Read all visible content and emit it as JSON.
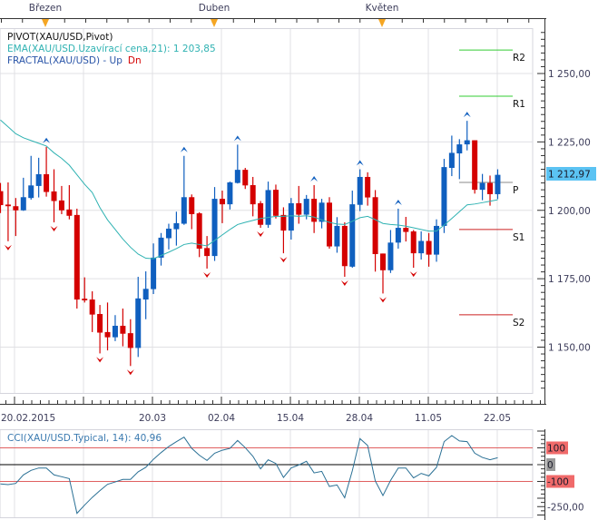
{
  "legend": {
    "pivot": "PIVOT(XAU/USD,Pivot)",
    "ema": "EMA(XAU/USD.Uzavírací cena,21): 1 203,85",
    "fractal": "FRACTAL(XAU/USD) -  Up",
    "fractal_dn": "Dn"
  },
  "top_axis": {
    "months": [
      "Březen",
      "Duben",
      "Květen"
    ]
  },
  "bottom_axis": {
    "dates": [
      "20.02.2015",
      "20.03",
      "02.04",
      "15.04",
      "28.04",
      "11.05",
      "22.05"
    ]
  },
  "price_axis": {
    "ticks": [
      {
        "value": 1250,
        "label": "1 250,00"
      },
      {
        "value": 1225,
        "label": "1 225,00"
      },
      {
        "value": 1200,
        "label": "1 200,00"
      },
      {
        "value": 1175,
        "label": "1 175,00"
      },
      {
        "value": 1150,
        "label": "1 150,00"
      }
    ],
    "current": {
      "value": 1212.97,
      "label": "1 212,97"
    }
  },
  "cci_pane": {
    "title": "CCI(XAU/USD.Typical, 14): 40,96",
    "levels": [
      {
        "value": 100,
        "label": "100"
      },
      {
        "value": 0,
        "label": "0"
      },
      {
        "value": -100,
        "label": "-100"
      }
    ],
    "axis_label": {
      "value": -250,
      "label": "-250,00"
    }
  },
  "colors": {
    "bull": "#0f5fbf",
    "bear": "#d40000",
    "ema": "#2fb2b2",
    "cci": "#2a7095",
    "resistance": "#33cc33",
    "support": "#cc2222",
    "pivot": "#8a8a8a",
    "current_price_bg": "#5bc3f3",
    "level_bg": "#f06a6a",
    "zero_bg": "#9a9a9a",
    "month_marker": "#f5a623"
  },
  "chart_data": {
    "type": "candlestick",
    "symbol": "XAU/USD",
    "ylim": [
      1135,
      1265
    ],
    "grid": true,
    "candles_ohlc": [
      [
        1207.0,
        1210.0,
        1199.0,
        1201.9
      ],
      [
        1202.1,
        1210.2,
        1188.7,
        1201.5
      ],
      [
        1201.5,
        1204.5,
        1190.6,
        1200.0
      ],
      [
        1200.0,
        1211.9,
        1199.8,
        1204.8
      ],
      [
        1204.5,
        1219.9,
        1203.9,
        1209.1
      ],
      [
        1208.9,
        1219.2,
        1204.7,
        1213.2
      ],
      [
        1213.2,
        1223.2,
        1205.0,
        1206.7
      ],
      [
        1206.9,
        1215.0,
        1195.6,
        1203.4
      ],
      [
        1203.6,
        1208.9,
        1198.6,
        1200.0
      ],
      [
        1200.3,
        1209.2,
        1196.7,
        1198.0
      ],
      [
        1198.3,
        1200.6,
        1164.1,
        1167.4
      ],
      [
        1167.7,
        1175.5,
        1166.3,
        1167.1
      ],
      [
        1167.4,
        1170.4,
        1155.5,
        1161.9
      ],
      [
        1162.1,
        1165.4,
        1147.7,
        1155.3
      ],
      [
        1155.5,
        1166.3,
        1148.8,
        1153.6
      ],
      [
        1153.6,
        1161.7,
        1152.2,
        1157.8
      ],
      [
        1157.8,
        1164.1,
        1150.3,
        1154.9
      ],
      [
        1155.1,
        1160.2,
        1143.1,
        1149.7
      ],
      [
        1149.7,
        1175.7,
        1146.4,
        1167.8
      ],
      [
        1167.4,
        1177.7,
        1160.2,
        1171.3
      ],
      [
        1171.2,
        1187.9,
        1169.4,
        1182.7
      ],
      [
        1182.7,
        1191.7,
        1179.8,
        1190.0
      ],
      [
        1189.8,
        1195.1,
        1185.7,
        1193.3
      ],
      [
        1193.1,
        1199.5,
        1187.1,
        1195.3
      ],
      [
        1195.1,
        1219.9,
        1194.7,
        1204.8
      ],
      [
        1204.8,
        1205.8,
        1193.1,
        1198.6
      ],
      [
        1198.9,
        1199.3,
        1182.9,
        1186.0
      ],
      [
        1186.2,
        1190.6,
        1178.7,
        1183.3
      ],
      [
        1183.3,
        1208.5,
        1181.5,
        1204.2
      ],
      [
        1204.2,
        1207.2,
        1195.3,
        1202.2
      ],
      [
        1202.2,
        1210.5,
        1200.3,
        1210.2
      ],
      [
        1210.0,
        1224.0,
        1209.8,
        1214.8
      ],
      [
        1214.8,
        1215.5,
        1207.8,
        1209.1
      ],
      [
        1209.2,
        1212.2,
        1197.8,
        1202.2
      ],
      [
        1202.6,
        1203.4,
        1193.6,
        1194.7
      ],
      [
        1194.7,
        1210.5,
        1193.6,
        1207.4
      ],
      [
        1207.5,
        1209.4,
        1197.0,
        1198.0
      ],
      [
        1198.3,
        1201.1,
        1184.3,
        1192.6
      ],
      [
        1192.6,
        1204.5,
        1189.3,
        1202.6
      ],
      [
        1202.6,
        1208.9,
        1195.1,
        1198.4
      ],
      [
        1198.4,
        1205.6,
        1196.7,
        1204.2
      ],
      [
        1204.2,
        1209.2,
        1191.7,
        1195.8
      ],
      [
        1195.8,
        1204.2,
        1193.4,
        1202.8
      ],
      [
        1202.8,
        1204.8,
        1186.0,
        1186.8
      ],
      [
        1186.8,
        1197.5,
        1184.5,
        1194.3
      ],
      [
        1194.3,
        1195.6,
        1175.7,
        1179.6
      ],
      [
        1179.4,
        1207.2,
        1179.0,
        1202.2
      ],
      [
        1202.0,
        1215.0,
        1199.7,
        1212.2
      ],
      [
        1212.2,
        1213.9,
        1201.7,
        1204.7
      ],
      [
        1204.8,
        1207.4,
        1177.6,
        1184.0
      ],
      [
        1184.2,
        1184.2,
        1169.6,
        1178.1
      ],
      [
        1178.1,
        1192.8,
        1177.1,
        1188.2
      ],
      [
        1188.2,
        1200.6,
        1186.0,
        1193.6
      ],
      [
        1193.6,
        1197.6,
        1188.6,
        1192.1
      ],
      [
        1192.3,
        1192.8,
        1179.0,
        1184.3
      ],
      [
        1184.3,
        1192.3,
        1182.0,
        1188.8
      ],
      [
        1188.8,
        1191.7,
        1179.4,
        1183.8
      ],
      [
        1183.8,
        1196.7,
        1181.2,
        1194.3
      ],
      [
        1194.3,
        1218.8,
        1191.7,
        1215.8
      ],
      [
        1215.5,
        1227.3,
        1212.5,
        1221.0
      ],
      [
        1220.8,
        1226.0,
        1211.4,
        1224.1
      ],
      [
        1224.1,
        1232.7,
        1221.9,
        1225.6
      ],
      [
        1225.6,
        1225.6,
        1206.1,
        1207.5
      ],
      [
        1207.5,
        1213.3,
        1203.7,
        1210.0
      ],
      [
        1210.0,
        1212.7,
        1201.7,
        1205.9
      ],
      [
        1205.9,
        1215.0,
        1204.1,
        1212.97
      ]
    ],
    "ema21": [
      1233,
      1230.5,
      1228,
      1226.5,
      1225.5,
      1224.5,
      1223.5,
      1221,
      1219,
      1216.5,
      1213,
      1209.5,
      1206.5,
      1201,
      1196.5,
      1193,
      1189.5,
      1186.5,
      1184,
      1182.5,
      1182.3,
      1183.5,
      1184.7,
      1186,
      1187.5,
      1188,
      1187.5,
      1187,
      1189,
      1191,
      1193,
      1194.8,
      1195.6,
      1196.3,
      1197,
      1197.4,
      1197.8,
      1197.8,
      1198,
      1197.8,
      1198,
      1197.5,
      1196.5,
      1195.6,
      1195,
      1194.8,
      1196,
      1197.3,
      1197.8,
      1196.6,
      1195.2,
      1194.8,
      1194.6,
      1194.2,
      1193.6,
      1193,
      1192.4,
      1192.4,
      1194.6,
      1197,
      1199.5,
      1202,
      1202.3,
      1202.8,
      1203.3,
      1203.85
    ],
    "fractal_up_bars": [
      6,
      24,
      31,
      41,
      47,
      52,
      61
    ],
    "fractal_down_bars": [
      1,
      7,
      13,
      17,
      27,
      34,
      37,
      45,
      50,
      54
    ],
    "pivot_levels": [
      {
        "name": "R2",
        "value": 1258.6
      },
      {
        "name": "R1",
        "value": 1241.7
      },
      {
        "name": "P",
        "value": 1210.2
      },
      {
        "name": "S1",
        "value": 1193.0
      },
      {
        "name": "S2",
        "value": 1161.8
      }
    ],
    "cci14": [
      -115,
      -119,
      -112,
      -61,
      -34,
      -20,
      -20,
      -61,
      -72,
      -83,
      -290,
      -241,
      -195,
      -155,
      -117,
      -103,
      -88,
      -88,
      -43,
      -16,
      32,
      72,
      108,
      137,
      164,
      97,
      56,
      25,
      68,
      86,
      97,
      144,
      101,
      50,
      -25,
      29,
      7,
      -76,
      -20,
      -2,
      20,
      -49,
      -40,
      -130,
      -121,
      -197,
      -36,
      155,
      114,
      -97,
      -184,
      -94,
      -20,
      -20,
      -79,
      -52,
      -67,
      -16,
      137,
      173,
      141,
      137,
      68,
      43,
      29,
      41
    ]
  }
}
